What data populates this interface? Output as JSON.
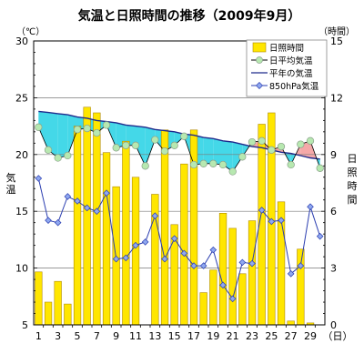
{
  "chart_data": {
    "type": "bar+line",
    "title": "気温と日照時間の推移（2009年9月）",
    "left_unit": "（℃）",
    "right_unit": "（時間）",
    "left_axis_label": [
      "温",
      "気"
    ],
    "right_axis_label": [
      "日",
      "照",
      "時",
      "間"
    ],
    "x_unit": "（日）",
    "x_tick_labels": [
      "1",
      "3",
      "5",
      "7",
      "9",
      "11",
      "13",
      "15",
      "17",
      "19",
      "21",
      "23",
      "25",
      "27",
      "29"
    ],
    "left_ylim": [
      5,
      30
    ],
    "left_ticks": [
      "5",
      "10",
      "15",
      "20",
      "25",
      "30"
    ],
    "right_ylim": [
      0,
      15
    ],
    "right_ticks": [
      "0",
      "3",
      "6",
      "9",
      "12",
      "15"
    ],
    "days": [
      1,
      2,
      3,
      4,
      5,
      6,
      7,
      8,
      9,
      10,
      11,
      12,
      13,
      14,
      15,
      16,
      17,
      18,
      19,
      20,
      21,
      22,
      23,
      24,
      25,
      26,
      27,
      28,
      29,
      30
    ],
    "series": [
      {
        "name": "日照時間",
        "type": "bar",
        "axis": "right",
        "color": "#FFE600",
        "edge": "#B08A00",
        "values": [
          2.8,
          1.2,
          2.3,
          1.1,
          10.5,
          11.5,
          11.2,
          9.1,
          7.3,
          9.7,
          7.8,
          0,
          6.9,
          10.3,
          5.3,
          8.5,
          10.3,
          1.7,
          2.9,
          5.9,
          5.1,
          2.7,
          5.5,
          10.6,
          11.2,
          6.5,
          0.2,
          4.0,
          0.1,
          0
        ]
      },
      {
        "name": "日平均気温",
        "type": "line",
        "axis": "left",
        "color": "#000000",
        "marker_fill": "#B7E8B0",
        "marker_edge": "#8AA08A",
        "values": [
          22.4,
          20.4,
          19.7,
          19.9,
          22.2,
          22.3,
          21.9,
          22.6,
          20.6,
          20.8,
          20.8,
          19.0,
          21.3,
          20.3,
          20.8,
          21.6,
          19.1,
          19.2,
          19.2,
          19.1,
          18.5,
          19.8,
          21.1,
          21.2,
          20.4,
          20.7,
          19.1,
          20.9,
          21.2,
          18.8
        ]
      },
      {
        "name": "平年の気温",
        "type": "line",
        "axis": "left",
        "color": "#1E2A8C",
        "values": [
          23.8,
          23.7,
          23.6,
          23.5,
          23.3,
          23.2,
          23.0,
          22.9,
          22.8,
          22.6,
          22.5,
          22.4,
          22.2,
          22.1,
          22.0,
          21.8,
          21.7,
          21.5,
          21.4,
          21.2,
          21.1,
          20.9,
          20.7,
          20.6,
          20.4,
          20.2,
          20.1,
          19.9,
          19.7,
          19.6
        ]
      },
      {
        "name": "850hPa気温",
        "type": "line",
        "axis": "left",
        "color": "#2A3DB0",
        "marker_fill": "#8FA8F0",
        "marker_edge": "#2A3DB0",
        "values": [
          17.9,
          14.2,
          14.0,
          16.3,
          15.9,
          15.3,
          15.0,
          16.6,
          10.8,
          10.9,
          12.0,
          12.3,
          14.6,
          10.8,
          12.6,
          11.3,
          10.2,
          10.2,
          11.6,
          8.5,
          7.3,
          10.5,
          10.4,
          15.1,
          14.1,
          14.2,
          9.5,
          10.2,
          15.4,
          12.8
        ]
      }
    ],
    "fills": {
      "below_normal": "#44D8E8",
      "above_normal": "#F5A8A8"
    },
    "legend_position": "top-right"
  }
}
